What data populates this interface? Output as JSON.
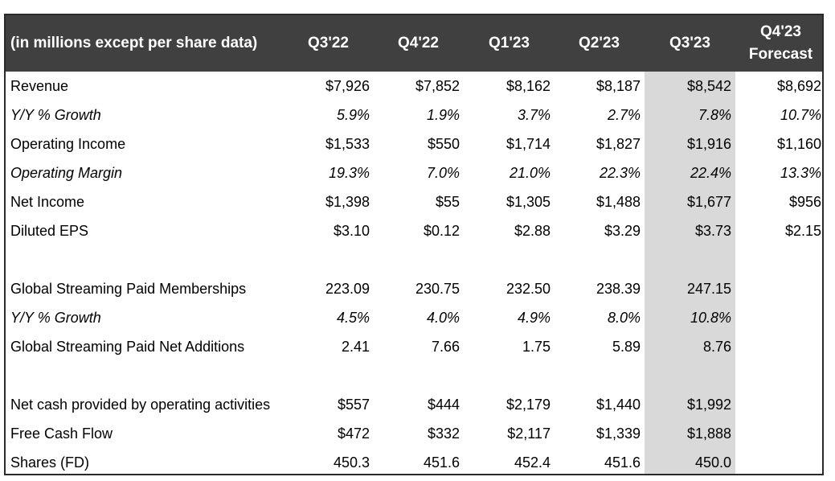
{
  "table": {
    "header": {
      "label": "(in millions except per share data)",
      "columns": [
        "Q3'22",
        "Q4'22",
        "Q1'23",
        "Q2'23",
        "Q3'23"
      ],
      "forecast_line1": "Q4'23",
      "forecast_line2": "Forecast"
    },
    "highlight_color": "#d9d9d9",
    "header_bg": "#404040",
    "rows": [
      {
        "label": "Revenue",
        "italic": false,
        "values": [
          "$7,926",
          "$7,852",
          "$8,162",
          "$8,187",
          "$8,542",
          "$8,692"
        ]
      },
      {
        "label": "Y/Y % Growth",
        "italic": true,
        "values": [
          "5.9%",
          "1.9%",
          "3.7%",
          "2.7%",
          "7.8%",
          "10.7%"
        ]
      },
      {
        "label": "Operating Income",
        "italic": false,
        "values": [
          "$1,533",
          "$550",
          "$1,714",
          "$1,827",
          "$1,916",
          "$1,160"
        ]
      },
      {
        "label": "Operating Margin",
        "italic": true,
        "values": [
          "19.3%",
          "7.0%",
          "21.0%",
          "22.3%",
          "22.4%",
          "13.3%"
        ]
      },
      {
        "label": "Net Income",
        "italic": false,
        "values": [
          "$1,398",
          "$55",
          "$1,305",
          "$1,488",
          "$1,677",
          "$956"
        ]
      },
      {
        "label": "Diluted EPS",
        "italic": false,
        "values": [
          "$3.10",
          "$0.12",
          "$2.88",
          "$3.29",
          "$3.73",
          "$2.15"
        ]
      },
      {
        "label": "Global Streaming Paid Memberships",
        "italic": false,
        "values": [
          "223.09",
          "230.75",
          "232.50",
          "238.39",
          "247.15",
          ""
        ]
      },
      {
        "label": "Y/Y % Growth",
        "italic": true,
        "values": [
          "4.5%",
          "4.0%",
          "4.9%",
          "8.0%",
          "10.8%",
          ""
        ]
      },
      {
        "label": "Global Streaming Paid Net Additions",
        "italic": false,
        "values": [
          "2.41",
          "7.66",
          "1.75",
          "5.89",
          "8.76",
          ""
        ]
      },
      {
        "label": "Net cash provided by operating activities",
        "italic": false,
        "values": [
          "$557",
          "$444",
          "$2,179",
          "$1,440",
          "$1,992",
          ""
        ]
      },
      {
        "label": "Free Cash Flow",
        "italic": false,
        "values": [
          "$472",
          "$332",
          "$2,117",
          "$1,339",
          "$1,888",
          ""
        ]
      },
      {
        "label": "Shares (FD)",
        "italic": false,
        "values": [
          "450.3",
          "451.6",
          "452.4",
          "451.6",
          "450.0",
          ""
        ]
      }
    ]
  }
}
